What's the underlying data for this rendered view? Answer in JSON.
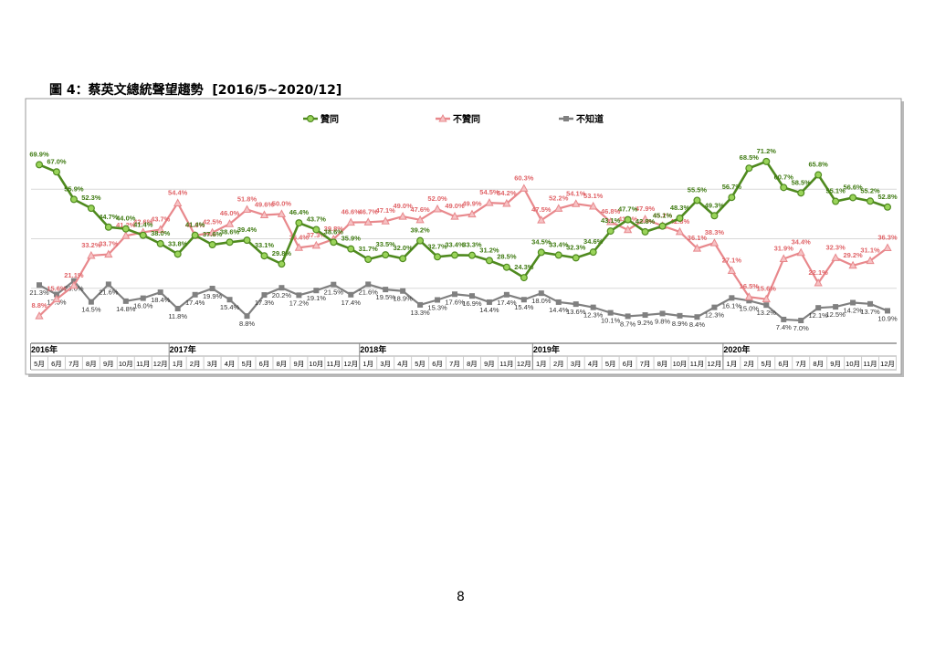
{
  "header": {
    "title": "圖 4：蔡英文總統聲望趨勢  [2016/5~2020/12]"
  },
  "chart_data": {
    "type": "line",
    "categories": [
      "5月",
      "6月",
      "7月",
      "8月",
      "9月",
      "10月",
      "11月",
      "12月",
      "1月",
      "2月",
      "3月",
      "4月",
      "5月",
      "6月",
      "8月",
      "9月",
      "10月",
      "11月",
      "12月",
      "1月",
      "3月",
      "4月",
      "5月",
      "6月",
      "7月",
      "8月",
      "9月",
      "11月",
      "12月",
      "1月",
      "2月",
      "3月",
      "4月",
      "5月",
      "6月",
      "7月",
      "8月",
      "10月",
      "11月",
      "12月",
      "1月",
      "2月",
      "5月",
      "6月",
      "7月",
      "8月",
      "9月",
      "10月",
      "11月",
      "12月"
    ],
    "year_labels": [
      "2016年",
      null,
      null,
      null,
      null,
      null,
      null,
      null,
      "2017年",
      null,
      null,
      null,
      null,
      null,
      null,
      null,
      null,
      null,
      null,
      "2018年",
      null,
      null,
      null,
      null,
      null,
      null,
      null,
      null,
      null,
      "2019年",
      null,
      null,
      null,
      null,
      null,
      null,
      null,
      null,
      null,
      null,
      "2020年",
      null,
      null,
      null,
      null,
      null,
      null,
      null,
      null,
      null
    ],
    "ylim": [
      0,
      80
    ],
    "ygrid": [
      20,
      40,
      60
    ],
    "series": [
      {
        "name": "贊同",
        "color": "#4f8a1f",
        "marker": "circle",
        "values": [
          69.9,
          67.0,
          55.9,
          52.3,
          44.7,
          44.0,
          41.4,
          38.0,
          33.8,
          41.4,
          37.6,
          38.6,
          39.4,
          33.1,
          29.8,
          46.4,
          43.7,
          38.6,
          35.9,
          31.7,
          33.5,
          32.0,
          39.2,
          32.7,
          33.4,
          33.3,
          31.2,
          28.5,
          24.3,
          34.5,
          33.4,
          32.3,
          34.6,
          43.1,
          47.7,
          42.8,
          45.1,
          48.3,
          55.5,
          49.3,
          56.7,
          68.5,
          71.2,
          60.7,
          58.5,
          65.8,
          55.1,
          56.6,
          55.2,
          52.8
        ],
        "value_labels": [
          "69.9%",
          "67.0%",
          "55.9%",
          "52.3%",
          "44.7%",
          "44.0%",
          "41.4%",
          "38.0%",
          "33.8%",
          "41.4%",
          "37.6%",
          "38.6%",
          "39.4%",
          "33.1%",
          "29.8%",
          "46.4%",
          "43.7%",
          "38.6%",
          "35.9%",
          "31.7%",
          "33.5%",
          "32.0%",
          "39.2%",
          "32.7%",
          "33.4%",
          "33.3%",
          "31.2%",
          "28.5%",
          "24.3%",
          "34.5%",
          "33.4%",
          "32.3%",
          "34.6%",
          "43.1%",
          "47.7%",
          "42.8%",
          "45.1%",
          "48.3%",
          "55.5%",
          "49.3%",
          "56.7%",
          "68.5%",
          "71.2%",
          "60.7%",
          "58.5%",
          "65.8%",
          "55.1%",
          "56.6%",
          "55.2%",
          "52.8%"
        ]
      },
      {
        "name": "不贊同",
        "color": "#e8888c",
        "marker": "triangle",
        "values": [
          8.8,
          15.6,
          21.1,
          33.2,
          33.7,
          41.2,
          42.6,
          43.7,
          54.4,
          41.3,
          42.5,
          46.0,
          51.8,
          49.6,
          50.0,
          36.4,
          37.3,
          39.8,
          46.6,
          46.7,
          47.1,
          49.0,
          47.6,
          52.0,
          49.0,
          49.9,
          54.5,
          54.2,
          60.3,
          47.5,
          52.2,
          54.1,
          53.1,
          46.8,
          43.6,
          47.9,
          45.2,
          42.8,
          36.1,
          38.3,
          27.1,
          16.5,
          15.6,
          31.9,
          34.4,
          22.1,
          32.3,
          29.2,
          31.1,
          36.3
        ],
        "value_labels": [
          "8.8%",
          "15.6%",
          "21.1%",
          "33.2%",
          "33.7%",
          "41.2%",
          "42.6%",
          "43.7%",
          "54.4%",
          "41.3%",
          "42.5%",
          "46.0%",
          "51.8%",
          "49.6%",
          "50.0%",
          "36.4%",
          "37.3%",
          "39.8%",
          "46.6%",
          "46.7%",
          "47.1%",
          "49.0%",
          "47.6%",
          "52.0%",
          "49.0%",
          "49.9%",
          "54.5%",
          "54.2%",
          "60.3%",
          "47.5%",
          "52.2%",
          "54.1%",
          "53.1%",
          "46.8%",
          "43.6%",
          "47.9%",
          "45.2%",
          "42.8%",
          "36.1%",
          "38.3%",
          "27.1%",
          "16.5%",
          "15.6%",
          "31.9%",
          "34.4%",
          "22.1%",
          "32.3%",
          "29.2%",
          "31.1%",
          "36.3%"
        ]
      },
      {
        "name": "不知道",
        "color": "#808080",
        "marker": "square",
        "values": [
          21.3,
          17.5,
          23.0,
          14.5,
          21.6,
          14.8,
          16.0,
          18.4,
          11.8,
          17.4,
          19.9,
          15.4,
          8.8,
          17.3,
          20.2,
          17.2,
          19.1,
          21.5,
          17.4,
          21.6,
          19.5,
          18.9,
          13.3,
          15.3,
          17.6,
          16.9,
          14.4,
          17.4,
          15.4,
          18.0,
          14.4,
          13.6,
          12.3,
          10.1,
          8.7,
          9.2,
          9.8,
          8.9,
          8.4,
          12.3,
          16.1,
          15.0,
          13.2,
          7.4,
          7.0,
          12.1,
          12.5,
          14.2,
          13.7,
          10.9
        ],
        "value_labels": [
          "21.3%",
          "17.5%",
          "23.0%",
          "14.5%",
          "21.6%",
          "14.8%",
          "16.0%",
          "18.4%",
          "11.8%",
          "17.4%",
          "19.9%",
          "15.4%",
          "8.8%",
          "17.3%",
          "20.2%",
          "17.2%",
          "19.1%",
          "21.5%",
          "17.4%",
          "21.6%",
          "19.5%",
          "18.9%",
          "13.3%",
          "15.3%",
          "17.6%",
          "16.9%",
          "14.4%",
          "17.4%",
          "15.4%",
          "18.0%",
          "14.4%",
          "13.6%",
          "12.3%",
          "10.1%",
          "8.7%",
          "9.2%",
          "9.8%",
          "8.9%",
          "8.4%",
          "12.3%",
          "16.1%",
          "15.0%",
          "13.2%",
          "7.4%",
          "7.0%",
          "12.1%",
          "12.5%",
          "14.2%",
          "13.7%",
          "10.9%"
        ]
      }
    ]
  },
  "footer": {
    "page": "8"
  }
}
